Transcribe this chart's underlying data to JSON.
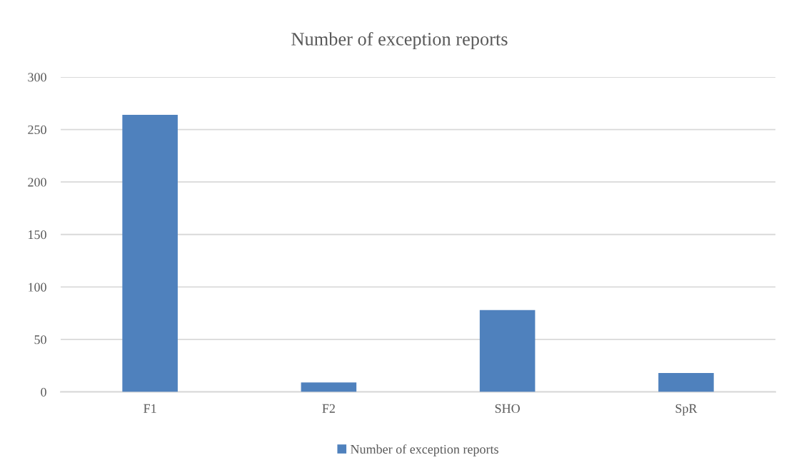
{
  "chart_data": {
    "type": "bar",
    "title": "Number of exception reports",
    "categories": [
      "F1",
      "F2",
      "SHO",
      "SpR"
    ],
    "series": [
      {
        "name": "Number of exception reports",
        "color": "#4f81bd",
        "values": [
          264,
          9,
          78,
          18
        ]
      }
    ],
    "ylim": [
      0,
      300
    ],
    "yticks": [
      0,
      50,
      100,
      150,
      200,
      250,
      300
    ],
    "grid": "y",
    "legend": "bottom"
  }
}
